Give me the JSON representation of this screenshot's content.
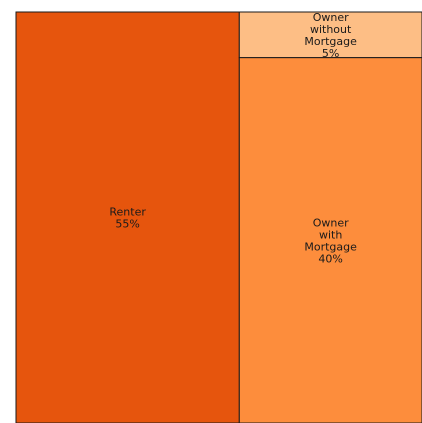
{
  "chart_data": {
    "type": "treemap",
    "title": "",
    "items": [
      {
        "name": "Renter",
        "label_lines": [
          "Renter"
        ],
        "value": 55,
        "value_label": "55%",
        "color": "#e6550d"
      },
      {
        "name": "Owner without Mortgage",
        "label_lines": [
          "Owner",
          "without",
          "Mortgage"
        ],
        "value": 5,
        "value_label": "5%",
        "color": "#fdbe85"
      },
      {
        "name": "Owner with Mortgage",
        "label_lines": [
          "Owner",
          "with",
          "Mortgage"
        ],
        "value": 40,
        "value_label": "40%",
        "color": "#fd8d3c"
      }
    ],
    "border_color": "#1a1a1a"
  }
}
